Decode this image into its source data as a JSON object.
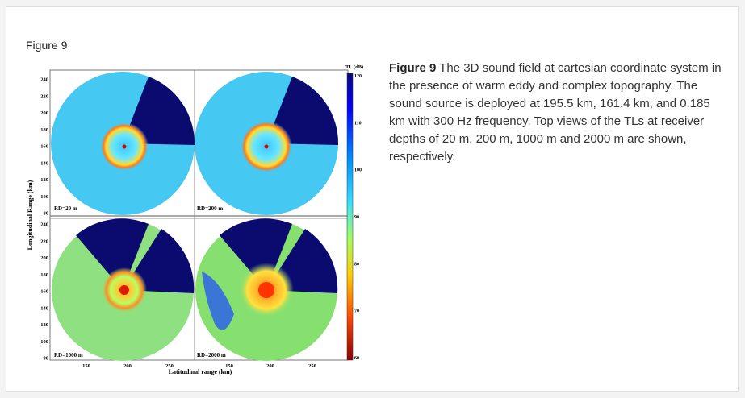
{
  "figure_label": "Figure 9",
  "caption": {
    "label": "Figure 9",
    "text": " The 3D sound field at cartesian coordinate system in the presence of warm eddy and complex topography. The sound source is deployed at 195.5 km, 161.4 km, and 0.185 km with 300 Hz frequency. Top views of the TLs at receiver depths of 20 m, 200 m, 1000 m and 2000 m are shown, respectively."
  },
  "chart_data": {
    "type": "heatmap",
    "xlabel": "Latitudinal range (km)",
    "ylabel": "Longitudinal Range (km)",
    "x_ticks": [
      "150",
      "200",
      "250",
      "150",
      "200",
      "250"
    ],
    "y_ticks_top": [
      "240",
      "220",
      "200",
      "180",
      "160",
      "140",
      "120",
      "100",
      "80"
    ],
    "y_ticks_bottom": [
      "240",
      "220",
      "200",
      "180",
      "160",
      "140",
      "120",
      "100",
      "80"
    ],
    "colorbar": {
      "title": "TL (dB)",
      "ticks": [
        "120",
        "110",
        "100",
        "90",
        "80",
        "70",
        "60"
      ],
      "range": [
        60,
        120
      ]
    },
    "panels": [
      {
        "label": "RD=20 m"
      },
      {
        "label": "RD=200 m"
      },
      {
        "label": "RD=1000 m"
      },
      {
        "label": "RD=2000 m"
      }
    ],
    "source": {
      "x_km": 195.5,
      "y_km": 161.4,
      "z_km": 0.185,
      "frequency": "300 Hz"
    }
  }
}
